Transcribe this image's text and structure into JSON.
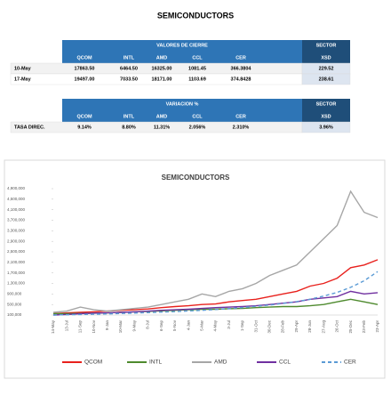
{
  "title": "SEMICONDUCTORS",
  "table_close": {
    "group": "VALORES DE CIERRE",
    "sector": "SECTOR",
    "columns": [
      "QCOM",
      "INTL",
      "AMD",
      "CCL",
      "CER",
      "XSD"
    ],
    "rows": [
      [
        "10-May",
        "17863.50",
        "6464.50",
        "16325.00",
        "1081.45",
        "366.3804",
        "229.52"
      ],
      [
        "17-May",
        "19497.00",
        "7033.50",
        "18171.00",
        "1103.69",
        "374.8428",
        "238.61"
      ]
    ]
  },
  "table_var": {
    "group": "VARIACION %",
    "sector": "SECTOR",
    "columns": [
      "QCOM",
      "INTL",
      "AMD",
      "CCL",
      "CER",
      "XSD"
    ],
    "rows": [
      [
        "TASA DIREC.",
        "9.14%",
        "8.80%",
        "11.31%",
        "2.056%",
        "2.310%",
        "3.96%"
      ]
    ]
  },
  "chart_data": {
    "type": "line",
    "title": "SEMICONDUCTORS",
    "categories": [
      "14-May",
      "13-Jul",
      "11-Sep",
      "10-Nov",
      "9-Jan",
      "10-Mar",
      "9-May",
      "8-Jul",
      "6-Sep",
      "5-Nov",
      "4-Jan",
      "5-Mar",
      "4-May",
      "3-Jul",
      "1-Sep",
      "31-Oct",
      "30-Dec",
      "28-Feb",
      "29-Apr",
      "28-Jun",
      "27-Aug",
      "26-Oct",
      "25-Dec",
      "23-Feb",
      "23-Apr"
    ],
    "series": [
      {
        "name": "QCOM",
        "color": "#e8211d",
        "values": [
          150000,
          180000,
          200000,
          220000,
          250000,
          280000,
          300000,
          330000,
          380000,
          420000,
          450000,
          500000,
          520000,
          600000,
          650000,
          700000,
          800000,
          900000,
          1000000,
          1200000,
          1300000,
          1500000,
          1900000,
          2000000,
          2200000
        ]
      },
      {
        "name": "INTL",
        "color": "#4e8a2e",
        "values": [
          150000,
          150000,
          160000,
          170000,
          180000,
          200000,
          220000,
          240000,
          260000,
          280000,
          300000,
          320000,
          320000,
          340000,
          350000,
          380000,
          400000,
          420000,
          420000,
          450000,
          500000,
          600000,
          700000,
          600000,
          500000
        ]
      },
      {
        "name": "AMD",
        "color": "#a6a6a6",
        "values": [
          200000,
          250000,
          400000,
          300000,
          250000,
          300000,
          350000,
          400000,
          500000,
          600000,
          700000,
          900000,
          800000,
          1000000,
          1100000,
          1300000,
          1600000,
          1800000,
          2000000,
          2500000,
          3000000,
          3500000,
          4800000,
          4000000,
          3800000
        ]
      },
      {
        "name": "CCL",
        "color": "#7030a0",
        "values": [
          100000,
          120000,
          150000,
          170000,
          180000,
          200000,
          220000,
          250000,
          280000,
          300000,
          320000,
          350000,
          380000,
          400000,
          420000,
          450000,
          500000,
          550000,
          600000,
          700000,
          750000,
          800000,
          1000000,
          900000,
          950000
        ]
      },
      {
        "name": "CER",
        "color": "#5b9bd5",
        "dashed": true,
        "values": [
          100000,
          110000,
          120000,
          130000,
          145000,
          160000,
          175000,
          190000,
          210000,
          230000,
          255000,
          280000,
          310000,
          345000,
          385000,
          430000,
          480000,
          540000,
          610000,
          700000,
          820000,
          960000,
          1150000,
          1400000,
          1750000
        ]
      }
    ],
    "ylim": [
      100000,
      4900000
    ],
    "yticks": [
      {
        "value": 100000,
        "label": "100,000"
      },
      {
        "value": 500000,
        "label": "500,000"
      },
      {
        "value": 900000,
        "label": "900,000"
      },
      {
        "value": 1300000,
        "label": "1,300,000"
      },
      {
        "value": 1700000,
        "label": "1,700,000"
      },
      {
        "value": 2100000,
        "label": "2,100,000"
      },
      {
        "value": 2500000,
        "label": "2,500,000"
      },
      {
        "value": 2900000,
        "label": "2,900,000"
      },
      {
        "value": 3300000,
        "label": "3,300,000"
      },
      {
        "value": 3700000,
        "label": "3,700,000"
      },
      {
        "value": 4100000,
        "label": "4,100,000"
      },
      {
        "value": 4500000,
        "label": "4,500,000"
      },
      {
        "value": 4900000,
        "label": "4,900,000"
      }
    ],
    "grid": false,
    "legend": "bottom"
  }
}
